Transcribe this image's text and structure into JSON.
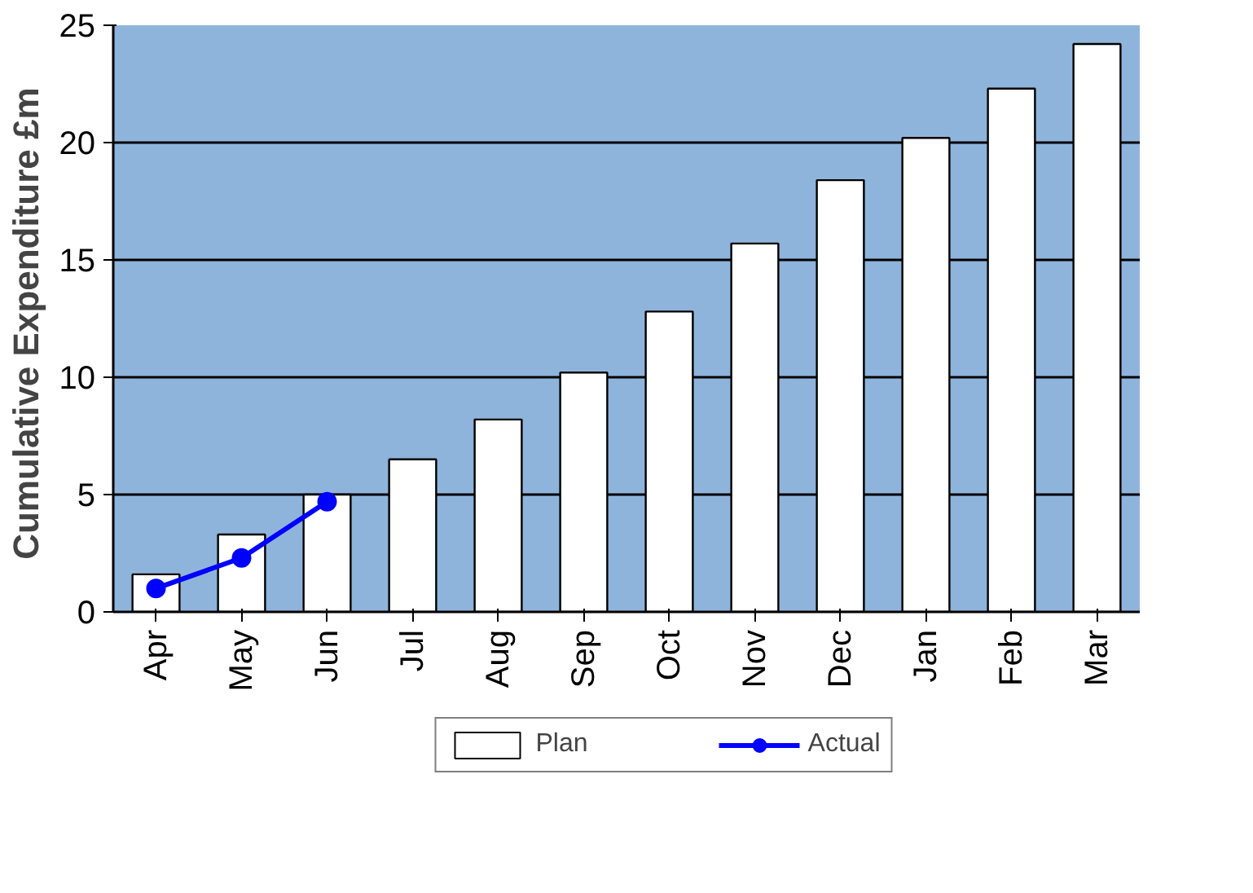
{
  "chart_data": {
    "type": "bar",
    "ylabel": "Cumulative  Expenditure £m",
    "categories": [
      "Apr",
      "May",
      "Jun",
      "Jul",
      "Aug",
      "Sep",
      "Oct",
      "Nov",
      "Dec",
      "Jan",
      "Feb",
      "Mar"
    ],
    "series": [
      {
        "name": "Plan",
        "color": "#ffffff",
        "values": [
          1.6,
          3.3,
          5.0,
          6.5,
          8.2,
          10.2,
          12.8,
          15.7,
          18.4,
          20.2,
          22.3,
          24.2
        ]
      },
      {
        "name": "Actual",
        "type": "line",
        "color": "#0000ff",
        "marker": "circle",
        "values": [
          1.0,
          2.3,
          4.7,
          null,
          null,
          null,
          null,
          null,
          null,
          null,
          null,
          null
        ]
      }
    ],
    "ylim": [
      0,
      25
    ],
    "yticks": [
      0,
      5,
      10,
      15,
      20,
      25
    ],
    "grid": "y",
    "legend": "bottom"
  }
}
